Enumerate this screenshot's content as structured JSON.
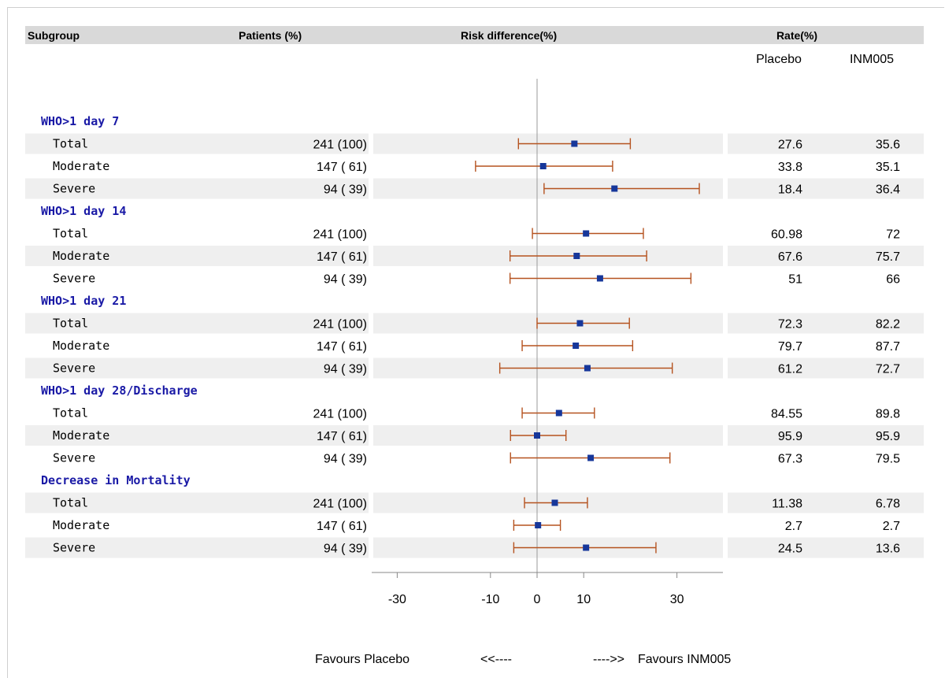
{
  "header": {
    "subgroup": "Subgroup",
    "patients": "Patients (%)",
    "risk": "Risk difference(%)",
    "rate": "Rate(%)",
    "placebo": "Placebo",
    "inm005": "INM005"
  },
  "footer": {
    "favours_placebo": "Favours Placebo",
    "arrow_left": "<<----",
    "arrow_right": "---->>",
    "favours_inm005": "Favours INM005"
  },
  "colors": {
    "header_bg": "#d9d9d9",
    "band": "#efefef",
    "group_text": "#1a1aa6",
    "ci_line": "#b5521f",
    "marker": "#17379a",
    "ref_line": "#9a9a9a"
  },
  "chart_data": {
    "type": "forest",
    "x_axis": {
      "ticks": [
        -30,
        -10,
        0,
        10,
        30
      ],
      "range": [
        -34,
        38
      ]
    },
    "reference_line": 0,
    "groups": [
      {
        "name": "WHO>1 day 7",
        "rows": [
          {
            "label": "Total",
            "patients": "241 (100)",
            "est": 8.0,
            "lo": -4.0,
            "hi": 20.0,
            "placebo": "27.6",
            "inm005": "35.6"
          },
          {
            "label": "Moderate",
            "patients": "147 ( 61)",
            "est": 1.3,
            "lo": -13.2,
            "hi": 16.2,
            "placebo": "33.8",
            "inm005": "35.1"
          },
          {
            "label": "Severe",
            "patients": "94 ( 39)",
            "est": 16.6,
            "lo": 1.5,
            "hi": 34.8,
            "placebo": "18.4",
            "inm005": "36.4"
          }
        ]
      },
      {
        "name": "WHO>1 day 14",
        "rows": [
          {
            "label": "Total",
            "patients": "241 (100)",
            "est": 10.5,
            "lo": -1.0,
            "hi": 22.8,
            "placebo": "60.98",
            "inm005": "72"
          },
          {
            "label": "Moderate",
            "patients": "147 ( 61)",
            "est": 8.5,
            "lo": -5.8,
            "hi": 23.5,
            "placebo": "67.6",
            "inm005": "75.7"
          },
          {
            "label": "Severe",
            "patients": "94 ( 39)",
            "est": 13.5,
            "lo": -5.8,
            "hi": 33.0,
            "placebo": "51",
            "inm005": "66"
          }
        ]
      },
      {
        "name": "WHO>1 day 21",
        "rows": [
          {
            "label": "Total",
            "patients": "241 (100)",
            "est": 9.2,
            "lo": 0.0,
            "hi": 19.8,
            "placebo": "72.3",
            "inm005": "82.2"
          },
          {
            "label": "Moderate",
            "patients": "147 ( 61)",
            "est": 8.3,
            "lo": -3.2,
            "hi": 20.5,
            "placebo": "79.7",
            "inm005": "87.7"
          },
          {
            "label": "Severe",
            "patients": "94 ( 39)",
            "est": 10.8,
            "lo": -8.0,
            "hi": 29.0,
            "placebo": "61.2",
            "inm005": "72.7"
          }
        ]
      },
      {
        "name": "WHO>1 day 28/Discharge",
        "rows": [
          {
            "label": "Total",
            "patients": "241 (100)",
            "est": 4.7,
            "lo": -3.2,
            "hi": 12.3,
            "placebo": "84.55",
            "inm005": "89.8"
          },
          {
            "label": "Moderate",
            "patients": "147 ( 61)",
            "est": 0.0,
            "lo": -5.7,
            "hi": 6.2,
            "placebo": "95.9",
            "inm005": "95.9"
          },
          {
            "label": "Severe",
            "patients": "94 ( 39)",
            "est": 11.5,
            "lo": -5.7,
            "hi": 28.5,
            "placebo": "67.3",
            "inm005": "79.5"
          }
        ]
      },
      {
        "name": "Decrease in Mortality",
        "rows": [
          {
            "label": "Total",
            "patients": "241 (100)",
            "est": 3.8,
            "lo": -2.7,
            "hi": 10.8,
            "placebo": "11.38",
            "inm005": "6.78"
          },
          {
            "label": "Moderate",
            "patients": "147 ( 61)",
            "est": 0.2,
            "lo": -5.0,
            "hi": 5.0,
            "placebo": "2.7",
            "inm005": "2.7"
          },
          {
            "label": "Severe",
            "patients": "94 ( 39)",
            "est": 10.5,
            "lo": -5.0,
            "hi": 25.5,
            "placebo": "24.5",
            "inm005": "13.6"
          }
        ]
      }
    ]
  }
}
